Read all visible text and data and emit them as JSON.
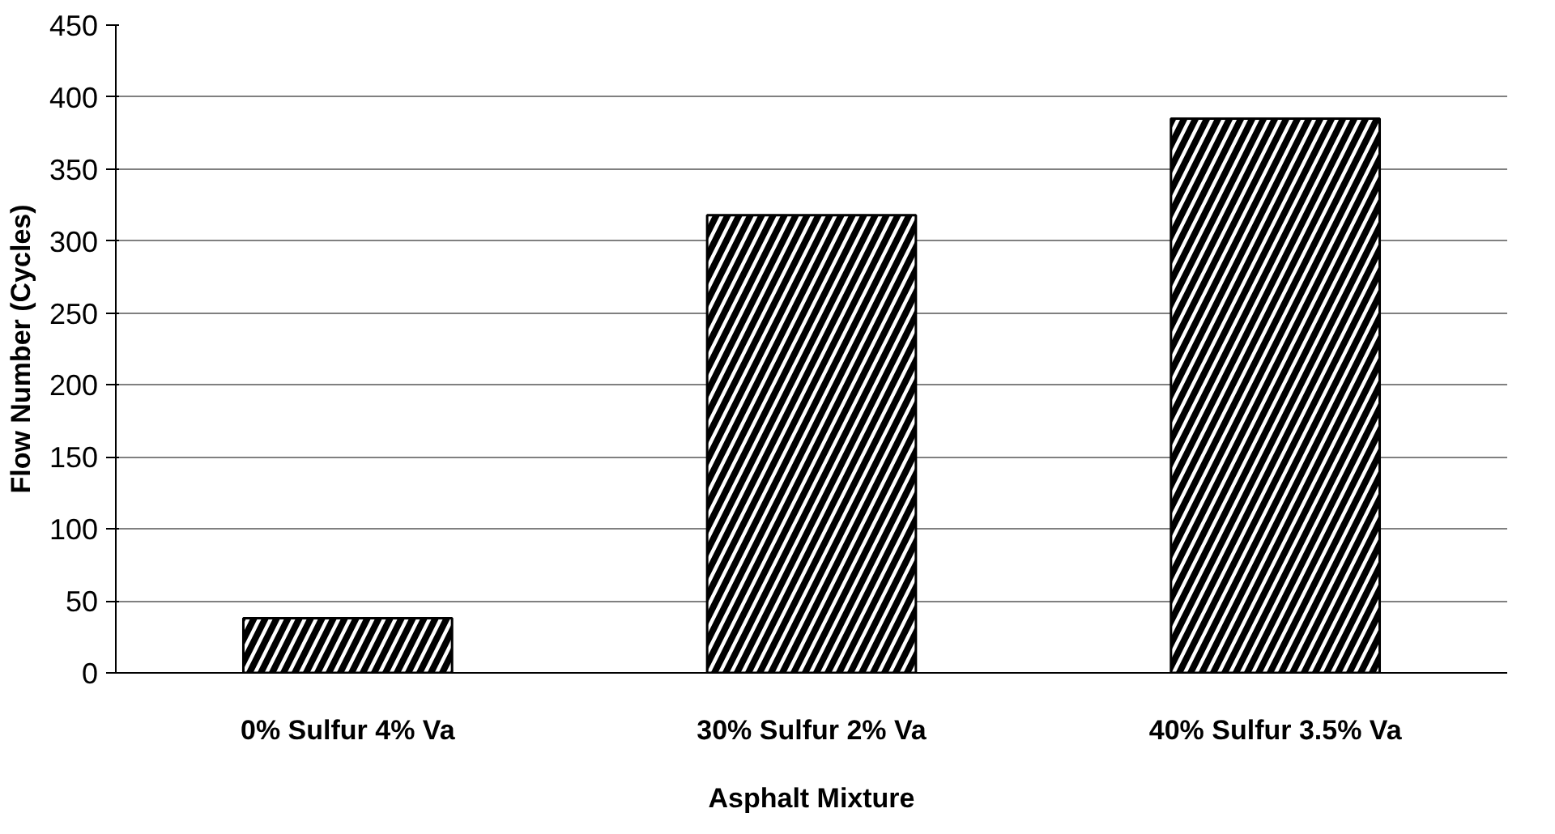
{
  "chart_data": {
    "type": "bar",
    "xlabel": "Asphalt Mixture",
    "ylabel": "Flow Number (Cycles)",
    "categories": [
      "0% Sulfur 4% Va",
      "30% Sulfur 2% Va",
      "40% Sulfur 3.5% Va"
    ],
    "values": [
      38,
      318,
      385
    ],
    "color": "#000000",
    "ylim": [
      0,
      450
    ],
    "yticks": [
      0,
      50,
      100,
      150,
      200,
      250,
      300,
      350,
      400,
      450
    ],
    "grid": "y"
  }
}
